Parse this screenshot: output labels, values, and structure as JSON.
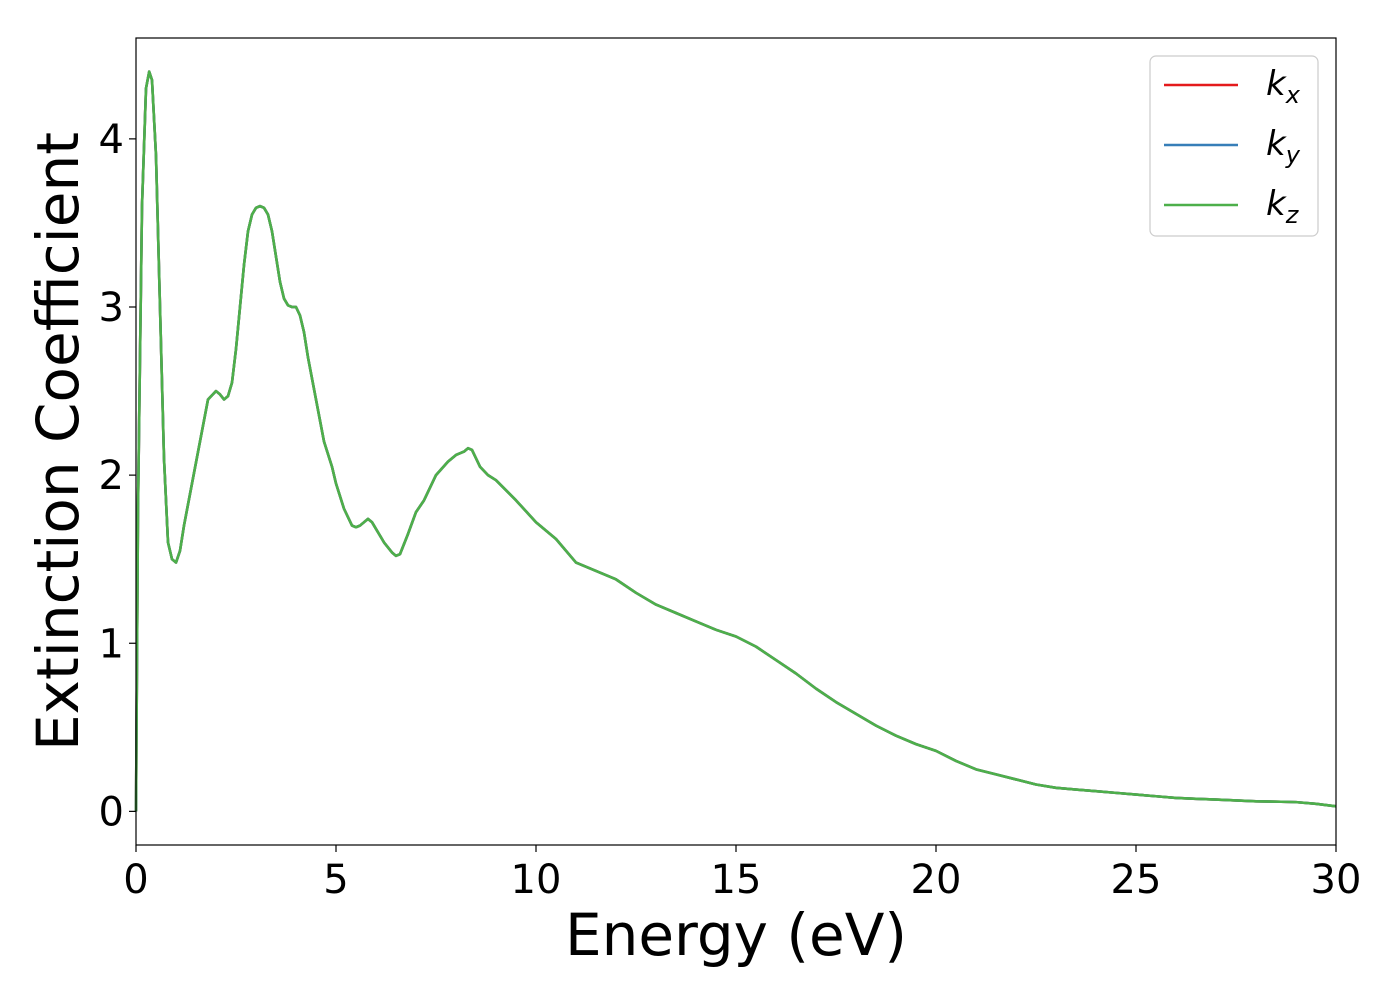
{
  "chart_data": {
    "type": "line",
    "title": "",
    "xlabel": "Energy (eV)",
    "ylabel": "Extinction Coefficient",
    "xlim": [
      0,
      30
    ],
    "ylim": [
      -0.2,
      4.6
    ],
    "xticks": [
      0,
      5,
      10,
      15,
      20,
      25,
      30
    ],
    "yticks": [
      0,
      1,
      2,
      3,
      4
    ],
    "grid": false,
    "legend_position": "top-right",
    "x": [
      0,
      0.05,
      0.15,
      0.25,
      0.33,
      0.4,
      0.5,
      0.6,
      0.7,
      0.8,
      0.9,
      1.0,
      1.1,
      1.2,
      1.4,
      1.6,
      1.8,
      2.0,
      2.1,
      2.2,
      2.3,
      2.4,
      2.5,
      2.6,
      2.7,
      2.8,
      2.9,
      3.0,
      3.1,
      3.2,
      3.3,
      3.4,
      3.5,
      3.6,
      3.7,
      3.8,
      3.9,
      4.0,
      4.1,
      4.2,
      4.3,
      4.5,
      4.7,
      4.9,
      5.0,
      5.2,
      5.4,
      5.5,
      5.6,
      5.8,
      5.9,
      6.0,
      6.2,
      6.4,
      6.5,
      6.6,
      6.8,
      7.0,
      7.2,
      7.5,
      7.8,
      8.0,
      8.2,
      8.3,
      8.4,
      8.5,
      8.6,
      8.8,
      9.0,
      9.5,
      10.0,
      10.5,
      11.0,
      11.5,
      12.0,
      12.5,
      13.0,
      13.5,
      14.0,
      14.5,
      15.0,
      15.5,
      16.0,
      16.5,
      17.0,
      17.5,
      18.0,
      18.5,
      19.0,
      19.5,
      20.0,
      20.5,
      21.0,
      21.5,
      22.0,
      22.5,
      23.0,
      23.5,
      24.0,
      24.5,
      25.0,
      25.5,
      26.0,
      26.5,
      27.0,
      27.5,
      28.0,
      28.5,
      29.0,
      29.5,
      30.0
    ],
    "series": [
      {
        "name": "k_x",
        "color": "#e41a1c",
        "values": [
          0.0,
          1.8,
          3.6,
          4.3,
          4.4,
          4.35,
          3.9,
          3.0,
          2.1,
          1.6,
          1.5,
          1.48,
          1.55,
          1.7,
          1.95,
          2.2,
          2.45,
          2.5,
          2.48,
          2.45,
          2.47,
          2.55,
          2.75,
          3.0,
          3.25,
          3.45,
          3.55,
          3.59,
          3.6,
          3.59,
          3.55,
          3.45,
          3.3,
          3.15,
          3.05,
          3.01,
          3.0,
          3.0,
          2.95,
          2.85,
          2.7,
          2.45,
          2.2,
          2.05,
          1.95,
          1.8,
          1.7,
          1.69,
          1.7,
          1.74,
          1.72,
          1.68,
          1.6,
          1.54,
          1.52,
          1.53,
          1.65,
          1.78,
          1.85,
          2.0,
          2.08,
          2.12,
          2.14,
          2.16,
          2.15,
          2.1,
          2.05,
          2.0,
          1.97,
          1.85,
          1.72,
          1.62,
          1.48,
          1.43,
          1.38,
          1.3,
          1.23,
          1.18,
          1.13,
          1.08,
          1.04,
          0.98,
          0.9,
          0.82,
          0.73,
          0.65,
          0.58,
          0.51,
          0.45,
          0.4,
          0.36,
          0.3,
          0.25,
          0.22,
          0.19,
          0.16,
          0.14,
          0.13,
          0.12,
          0.11,
          0.1,
          0.09,
          0.08,
          0.075,
          0.07,
          0.065,
          0.06,
          0.058,
          0.055,
          0.045,
          0.03
        ]
      },
      {
        "name": "k_y",
        "color": "#377eb8",
        "values": [
          0.0,
          1.8,
          3.6,
          4.3,
          4.4,
          4.35,
          3.9,
          3.0,
          2.1,
          1.6,
          1.5,
          1.48,
          1.55,
          1.7,
          1.95,
          2.2,
          2.45,
          2.5,
          2.48,
          2.45,
          2.47,
          2.55,
          2.75,
          3.0,
          3.25,
          3.45,
          3.55,
          3.59,
          3.6,
          3.59,
          3.55,
          3.45,
          3.3,
          3.15,
          3.05,
          3.01,
          3.0,
          3.0,
          2.95,
          2.85,
          2.7,
          2.45,
          2.2,
          2.05,
          1.95,
          1.8,
          1.7,
          1.69,
          1.7,
          1.74,
          1.72,
          1.68,
          1.6,
          1.54,
          1.52,
          1.53,
          1.65,
          1.78,
          1.85,
          2.0,
          2.08,
          2.12,
          2.14,
          2.16,
          2.15,
          2.1,
          2.05,
          2.0,
          1.97,
          1.85,
          1.72,
          1.62,
          1.48,
          1.43,
          1.38,
          1.3,
          1.23,
          1.18,
          1.13,
          1.08,
          1.04,
          0.98,
          0.9,
          0.82,
          0.73,
          0.65,
          0.58,
          0.51,
          0.45,
          0.4,
          0.36,
          0.3,
          0.25,
          0.22,
          0.19,
          0.16,
          0.14,
          0.13,
          0.12,
          0.11,
          0.1,
          0.09,
          0.08,
          0.075,
          0.07,
          0.065,
          0.06,
          0.058,
          0.055,
          0.045,
          0.03
        ]
      },
      {
        "name": "k_z",
        "color": "#4daf4a",
        "values": [
          0.0,
          1.8,
          3.6,
          4.3,
          4.4,
          4.35,
          3.9,
          3.0,
          2.1,
          1.6,
          1.5,
          1.48,
          1.55,
          1.7,
          1.95,
          2.2,
          2.45,
          2.5,
          2.48,
          2.45,
          2.47,
          2.55,
          2.75,
          3.0,
          3.25,
          3.45,
          3.55,
          3.59,
          3.6,
          3.59,
          3.55,
          3.45,
          3.3,
          3.15,
          3.05,
          3.01,
          3.0,
          3.0,
          2.95,
          2.85,
          2.7,
          2.45,
          2.2,
          2.05,
          1.95,
          1.8,
          1.7,
          1.69,
          1.7,
          1.74,
          1.72,
          1.68,
          1.6,
          1.54,
          1.52,
          1.53,
          1.65,
          1.78,
          1.85,
          2.0,
          2.08,
          2.12,
          2.14,
          2.16,
          2.15,
          2.1,
          2.05,
          2.0,
          1.97,
          1.85,
          1.72,
          1.62,
          1.48,
          1.43,
          1.38,
          1.3,
          1.23,
          1.18,
          1.13,
          1.08,
          1.04,
          0.98,
          0.9,
          0.82,
          0.73,
          0.65,
          0.58,
          0.51,
          0.45,
          0.4,
          0.36,
          0.3,
          0.25,
          0.22,
          0.19,
          0.16,
          0.14,
          0.13,
          0.12,
          0.11,
          0.1,
          0.09,
          0.08,
          0.075,
          0.07,
          0.065,
          0.06,
          0.058,
          0.055,
          0.045,
          0.03
        ]
      }
    ],
    "legend": [
      {
        "base": "k",
        "sub": "x",
        "color": "#e41a1c"
      },
      {
        "base": "k",
        "sub": "y",
        "color": "#377eb8"
      },
      {
        "base": "k",
        "sub": "z",
        "color": "#4daf4a"
      }
    ]
  }
}
